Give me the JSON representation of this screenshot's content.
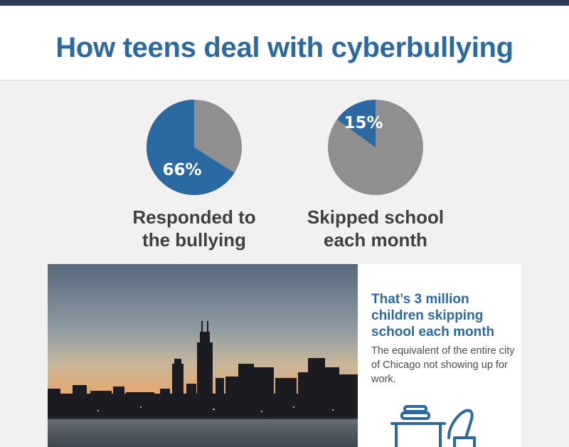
{
  "header": {
    "title": "How teens deal with cyberbullying"
  },
  "colors": {
    "accent": "#2b69a3",
    "neutral": "#8f8f8f",
    "text": "#3f3f3f"
  },
  "chart_data": [
    {
      "type": "pie",
      "values": [
        66,
        34
      ],
      "highlight_label": "66%",
      "caption": "Responded to the bullying",
      "caption_lines": [
        "Responded to",
        "the bullying"
      ],
      "colors": [
        "#2b69a3",
        "#8f8f8f"
      ]
    },
    {
      "type": "pie",
      "values": [
        15,
        85
      ],
      "highlight_label": "15%",
      "caption": "Skipped school each month",
      "caption_lines": [
        "Skipped school",
        "each month"
      ],
      "colors": [
        "#2b69a3",
        "#8f8f8f"
      ]
    }
  ],
  "callout": {
    "heading": "That’s 3 million children skipping school each month",
    "body": "The equivalent of the entire city of Chicago not showing up for work."
  },
  "icons": {
    "photo": "chicago-skyline-photo",
    "desk": "school-desk-icon"
  }
}
